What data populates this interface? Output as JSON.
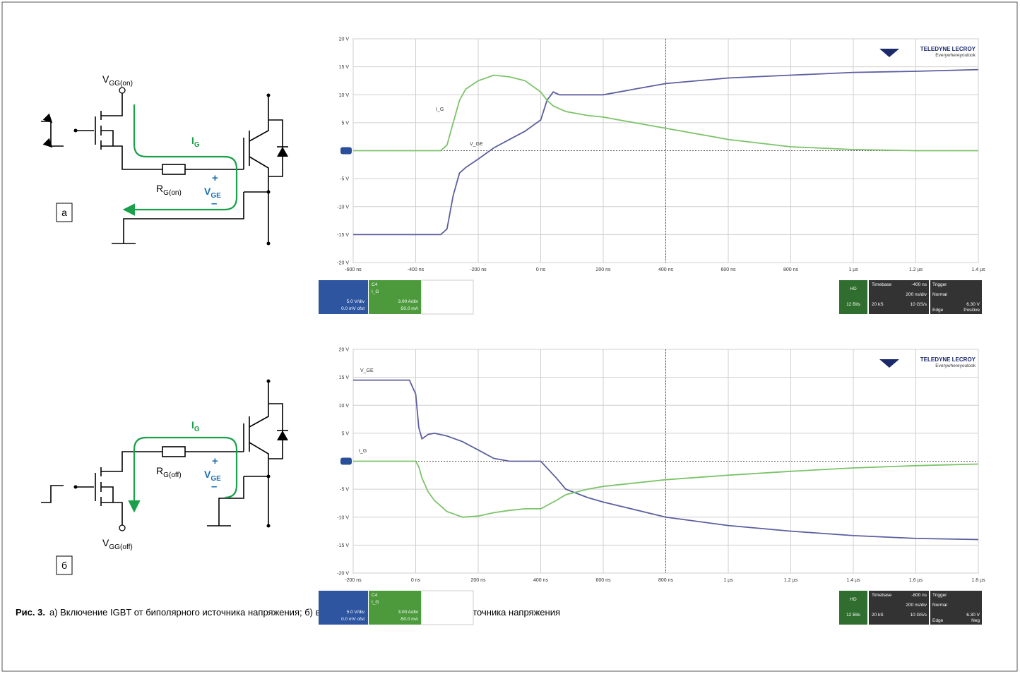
{
  "diagrams": [
    {
      "label": "а",
      "supply": {
        "base": "V",
        "sub": "GG(on)"
      },
      "current": {
        "base": "I",
        "sub": "G"
      },
      "resistor": {
        "base": "R",
        "sub": "G(on)"
      },
      "voltage": {
        "base": "V",
        "sub": "GE"
      },
      "plus": "+",
      "minus": "–"
    },
    {
      "label": "б",
      "supply": {
        "base": "V",
        "sub": "GG(off)"
      },
      "current": {
        "base": "I",
        "sub": "G"
      },
      "resistor": {
        "base": "R",
        "sub": "G(off)"
      },
      "voltage": {
        "base": "V",
        "sub": "GE"
      },
      "plus": "+",
      "minus": "–"
    }
  ],
  "chart_data": [
    {
      "type": "line",
      "grid": true,
      "logo": {
        "brand": "TELEDYNE LECROY",
        "slogan": "Everywhereyoulook"
      },
      "x": [
        -600,
        -400,
        -320,
        -300,
        -280,
        -260,
        -240,
        -200,
        -150,
        -100,
        -50,
        0,
        20,
        40,
        60,
        80,
        100,
        150,
        200,
        300,
        400,
        600,
        800,
        1000,
        1200,
        1400
      ],
      "series": [
        {
          "name": "V_GE",
          "color": "#5b5f9e",
          "values": [
            -15,
            -15,
            -15,
            -14,
            -8,
            -4,
            -3,
            -1.5,
            0.5,
            2,
            3.5,
            5.5,
            9,
            10.5,
            10,
            10,
            10,
            10,
            10,
            11,
            12,
            13,
            13.5,
            14,
            14.2,
            14.5
          ]
        },
        {
          "name": "I_G",
          "color": "#7cc36a",
          "values": [
            0,
            0,
            0,
            1,
            5,
            9,
            11,
            12.5,
            13.5,
            13.2,
            12.5,
            10.5,
            9,
            8,
            7.5,
            7,
            6.8,
            6.3,
            6,
            5,
            4,
            2,
            0.7,
            0.2,
            0,
            0
          ]
        }
      ],
      "xlim": [
        -600,
        1400
      ],
      "xticks": [
        {
          "value": -600,
          "label": "-600 ns"
        },
        {
          "value": -400,
          "label": "-400 ns"
        },
        {
          "value": -200,
          "label": "-200 ns"
        },
        {
          "value": 0,
          "label": "0 ns"
        },
        {
          "value": 200,
          "label": "200 ns"
        },
        {
          "value": 400,
          "label": "400 ns"
        },
        {
          "value": 600,
          "label": "600 ns"
        },
        {
          "value": 800,
          "label": "800 ns"
        },
        {
          "value": 1000,
          "label": "1 µs"
        },
        {
          "value": 1200,
          "label": "1.2 µs"
        },
        {
          "value": 1400,
          "label": "1.4 µs"
        }
      ],
      "ylim": [
        -20,
        20
      ],
      "yticks": [
        {
          "value": 20,
          "label": "20 V"
        },
        {
          "value": 15,
          "label": "15 V"
        },
        {
          "value": 10,
          "label": "10 V"
        },
        {
          "value": 5,
          "label": "5 V"
        },
        {
          "value": -5,
          "label": "-5 V"
        },
        {
          "value": -10,
          "label": "-10 V"
        },
        {
          "value": -15,
          "label": "-15 V"
        },
        {
          "value": -20,
          "label": "-20 V"
        }
      ],
      "info": {
        "ch1": [
          "5.0 V/div",
          "0.0 mV ofst"
        ],
        "ch4": [
          "C4",
          "I_G",
          "3.00 A/div",
          "-50.0 mA"
        ],
        "acq": [
          "HD",
          "12 Bits"
        ],
        "timebase": [
          "Timebase",
          "-400 ns",
          "200 ns/div",
          "20 kS",
          "10 GS/s"
        ],
        "trigger": [
          "Trigger",
          "Normal",
          "6.30 V",
          "Edge",
          "Positive"
        ]
      }
    },
    {
      "type": "line",
      "grid": true,
      "logo": {
        "brand": "TELEDYNE LECROY",
        "slogan": "Everywhereyoulook"
      },
      "x": [
        -200,
        -100,
        -20,
        0,
        10,
        20,
        40,
        60,
        100,
        150,
        200,
        250,
        300,
        350,
        400,
        450,
        480,
        550,
        600,
        800,
        1000,
        1200,
        1400,
        1600,
        1800
      ],
      "series": [
        {
          "name": "V_GE",
          "color": "#5b5f9e",
          "values": [
            14.5,
            14.5,
            14.5,
            12,
            6,
            4,
            4.8,
            5,
            4.5,
            3.5,
            2,
            0.5,
            0,
            0,
            0,
            -3,
            -5,
            -6.5,
            -7.3,
            -10,
            -11.5,
            -12.5,
            -13.3,
            -13.8,
            -14
          ]
        },
        {
          "name": "I_G",
          "color": "#7cc36a",
          "values": [
            0,
            0,
            0,
            0,
            -1,
            -3,
            -5.5,
            -7,
            -9,
            -10,
            -9.8,
            -9.2,
            -8.8,
            -8.5,
            -8.5,
            -7,
            -6,
            -5,
            -4.5,
            -3.3,
            -2.5,
            -1.8,
            -1.2,
            -0.8,
            -0.5
          ]
        }
      ],
      "xlim": [
        -200,
        1800
      ],
      "xticks": [
        {
          "value": -200,
          "label": "-200 ns"
        },
        {
          "value": 0,
          "label": "0 ns"
        },
        {
          "value": 200,
          "label": "200 ns"
        },
        {
          "value": 400,
          "label": "400 ns"
        },
        {
          "value": 600,
          "label": "600 ns"
        },
        {
          "value": 800,
          "label": "800 ns"
        },
        {
          "value": 1000,
          "label": "1 µs"
        },
        {
          "value": 1200,
          "label": "1.2 µs"
        },
        {
          "value": 1400,
          "label": "1.4 µs"
        },
        {
          "value": 1600,
          "label": "1.6 µs"
        },
        {
          "value": 1800,
          "label": "1.8 µs"
        }
      ],
      "ylim": [
        -20,
        20
      ],
      "yticks": [
        {
          "value": 20,
          "label": "20 V"
        },
        {
          "value": 15,
          "label": "15 V"
        },
        {
          "value": 10,
          "label": "10 V"
        },
        {
          "value": 5,
          "label": "5 V"
        },
        {
          "value": -5,
          "label": "-5 V"
        },
        {
          "value": -10,
          "label": "-10 V"
        },
        {
          "value": -15,
          "label": "-15 V"
        },
        {
          "value": -20,
          "label": "-20 V"
        }
      ],
      "info": {
        "ch1": [
          "5.0 V/div",
          "0.0 mV ofst"
        ],
        "ch4": [
          "C4",
          "I_G",
          "3.00 A/div",
          "-50.0 mA"
        ],
        "acq": [
          "HD",
          "12 Bits"
        ],
        "timebase": [
          "Timebase",
          "-800 ns",
          "200 ns/div",
          "20 kS",
          "10 GS/s"
        ],
        "trigger": [
          "Trigger",
          "Normal",
          "6.30 V",
          "Edge",
          "Neg"
        ]
      }
    }
  ],
  "caption": {
    "label": "Рис. 3.",
    "text": "а) Включение IGBT от биполярного источника напряжения; б) выключение IGBT от биполярного источника напряжения"
  }
}
